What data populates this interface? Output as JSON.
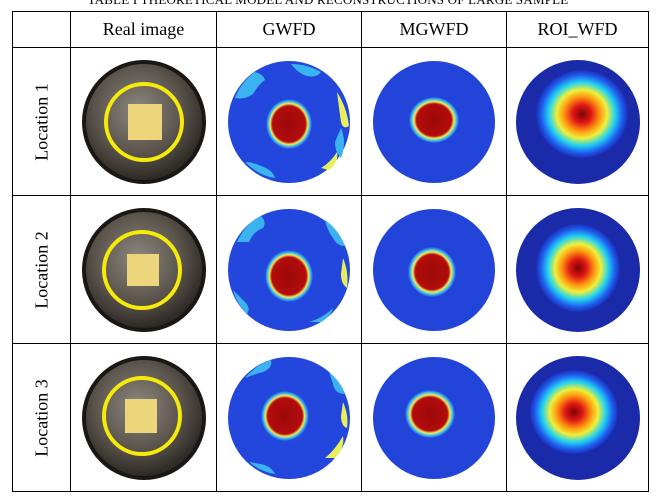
{
  "caption": "TABLE I THEORETICAL MODEL AND RECONSTRUCTIONS OF LARGE SAMPLE",
  "columns": [
    "",
    "Real image",
    "GWFD",
    "MGWFD",
    "ROI_WFD"
  ],
  "rows": [
    {
      "label": "Location 1"
    },
    {
      "label": "Location 2"
    },
    {
      "label": "Location 3"
    }
  ],
  "colors": {
    "background_blue": "#1f3fd6",
    "edge_cyan": "#3ab3f0",
    "edge_yellow": "#e8ef5a",
    "target_red": "#a10a0a",
    "ring_yellow": "#f5ea0c",
    "sample_square": "#ecd57a",
    "disc_dark": "#3a3530"
  }
}
